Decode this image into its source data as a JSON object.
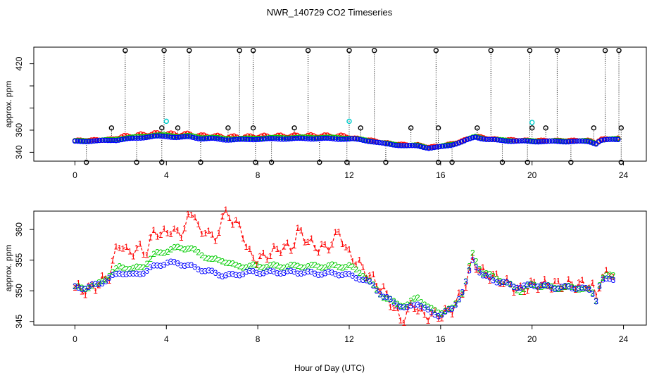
{
  "chart_data": {
    "type": "scatter",
    "title": "NWR_140729  CO2 Timeseries",
    "xlabel": "Hour of Day (UTC)",
    "colors": {
      "series1": "#ff0000",
      "series2": "#00cc00",
      "series3": "#0000ff",
      "flagged": "#000000",
      "reference": "#00cccc"
    },
    "panels": [
      {
        "id": "top",
        "ylabel": "approx. ppm",
        "xlim": [
          -1.8,
          25
        ],
        "ylim": [
          332,
          435
        ],
        "x_ticks": [
          "0",
          "4",
          "8",
          "12",
          "16",
          "20",
          "24"
        ],
        "y_ticks": [
          "340",
          "360",
          "380",
          "400",
          "420"
        ],
        "y_tick_labels_shown": [
          "340",
          "360",
          "420"
        ],
        "marker": "o",
        "baseline": [
          [
            0,
            350
          ],
          [
            1,
            350.5
          ],
          [
            1.5,
            351
          ],
          [
            2,
            352
          ],
          [
            2.5,
            353
          ],
          [
            3,
            354
          ],
          [
            3.5,
            355
          ],
          [
            4,
            355
          ],
          [
            4.5,
            354
          ],
          [
            5,
            354.5
          ],
          [
            5.5,
            353
          ],
          [
            6,
            353
          ],
          [
            6.5,
            352
          ],
          [
            7,
            352
          ],
          [
            7.5,
            352
          ],
          [
            8,
            352.5
          ],
          [
            9,
            352.8
          ],
          [
            10,
            353
          ],
          [
            11,
            353
          ],
          [
            12,
            352.5
          ],
          [
            12.5,
            351.5
          ],
          [
            13,
            350
          ],
          [
            13.5,
            348
          ],
          [
            14,
            347
          ],
          [
            14.5,
            346
          ],
          [
            15,
            346
          ],
          [
            15.5,
            344
          ],
          [
            16,
            345
          ],
          [
            16.5,
            347
          ],
          [
            17,
            350
          ],
          [
            17.5,
            354
          ],
          [
            18,
            352
          ],
          [
            18.5,
            351
          ],
          [
            19,
            350.5
          ],
          [
            20,
            350
          ],
          [
            21,
            350
          ],
          [
            22,
            350
          ],
          [
            22.5,
            350
          ],
          [
            22.8,
            348
          ],
          [
            23,
            351
          ],
          [
            23.8,
            352
          ]
        ],
        "spikes_up": [
          1.6,
          2.2,
          3.8,
          3.9,
          4.5,
          5.0,
          6.7,
          7.2,
          7.8,
          7.8,
          9.6,
          10.2,
          12.0,
          12.5,
          13.1,
          14.7,
          15.8,
          15.9,
          17.6,
          18.2,
          19.9,
          20.0,
          20.6,
          21.1,
          22.7,
          23.2,
          23.8,
          23.9
        ],
        "spike_tops": [
          362,
          432,
          362,
          432,
          362,
          432,
          362,
          432,
          432,
          362,
          362,
          432,
          432,
          362,
          432,
          362,
          432,
          362,
          362,
          432,
          432,
          362,
          362,
          432,
          362,
          432,
          432,
          362
        ],
        "spikes_down": [
          0.5,
          2.7,
          3.8,
          5.5,
          7.9,
          8.6,
          10.7,
          11.9,
          13.6,
          15.9,
          16.5,
          18.7,
          19.8,
          21.7,
          23.9
        ],
        "spike_bottom": 331,
        "reference_points": [
          [
            4.0,
            368
          ],
          [
            12.0,
            368
          ],
          [
            20.0,
            367
          ]
        ]
      },
      {
        "id": "bottom",
        "ylabel": "approx. ppm",
        "xlim": [
          -1.8,
          25
        ],
        "ylim": [
          344.4,
          363
        ],
        "x_ticks": [
          "0",
          "4",
          "8",
          "12",
          "16",
          "20",
          "24"
        ],
        "y_ticks": [
          "345",
          "350",
          "355",
          "360"
        ],
        "series_markers": [
          "1",
          "2",
          "3"
        ],
        "series": [
          {
            "name": "1",
            "color": "#ff0000",
            "values": [
              [
                0,
                350.5
              ],
              [
                0.5,
                350
              ],
              [
                1,
                351
              ],
              [
                1.5,
                352.5
              ],
              [
                1.8,
                356.5
              ],
              [
                2,
                358
              ],
              [
                2.3,
                356
              ],
              [
                2.8,
                357
              ],
              [
                3.1,
                356
              ],
              [
                3.5,
                360
              ],
              [
                3.8,
                359
              ],
              [
                4.2,
                360
              ],
              [
                4.6,
                359
              ],
              [
                5,
                362
              ],
              [
                5.3,
                363
              ],
              [
                5.5,
                358
              ],
              [
                5.8,
                361
              ],
              [
                6.1,
                357
              ],
              [
                6.4,
                362
              ],
              [
                6.7,
                362.5
              ],
              [
                7,
                361
              ],
              [
                7.3,
                360
              ],
              [
                7.6,
                356
              ],
              [
                8,
                355
              ],
              [
                8.5,
                356
              ],
              [
                9,
                357
              ],
              [
                9.5,
                357
              ],
              [
                9.8,
                360
              ],
              [
                10.2,
                358
              ],
              [
                10.6,
                357
              ],
              [
                11,
                357
              ],
              [
                11.3,
                358
              ],
              [
                11.6,
                360
              ],
              [
                11.8,
                357
              ],
              [
                12,
                356
              ],
              [
                12.5,
                354
              ],
              [
                13,
                352
              ],
              [
                13.5,
                350
              ],
              [
                14,
                347
              ],
              [
                14.3,
                345
              ],
              [
                14.8,
                348
              ],
              [
                15.2,
                346
              ],
              [
                15.6,
                346
              ],
              [
                16,
                346
              ],
              [
                16.5,
                347
              ],
              [
                17,
                350
              ],
              [
                17.4,
                355
              ],
              [
                17.8,
                353
              ],
              [
                18.5,
                352
              ],
              [
                19,
                351
              ],
              [
                19.5,
                350
              ],
              [
                20,
                351
              ],
              [
                21,
                351
              ],
              [
                22,
                351
              ],
              [
                22.6,
                351
              ],
              [
                22.8,
                349
              ],
              [
                23,
                352
              ],
              [
                23.5,
                353
              ]
            ]
          },
          {
            "name": "2",
            "color": "#00cc00",
            "values": [
              [
                0,
                350.5
              ],
              [
                0.5,
                350.5
              ],
              [
                1,
                351
              ],
              [
                1.5,
                352.5
              ],
              [
                2,
                354
              ],
              [
                2.5,
                353.5
              ],
              [
                3,
                354
              ],
              [
                3.5,
                356
              ],
              [
                4,
                356.5
              ],
              [
                4.5,
                357
              ],
              [
                5,
                357
              ],
              [
                5.5,
                356
              ],
              [
                6,
                355
              ],
              [
                6.5,
                355
              ],
              [
                7,
                354
              ],
              [
                7.5,
                354
              ],
              [
                8,
                354
              ],
              [
                8.5,
                354
              ],
              [
                9,
                354
              ],
              [
                9.5,
                354
              ],
              [
                10,
                354
              ],
              [
                10.5,
                354
              ],
              [
                11,
                354
              ],
              [
                11.5,
                354
              ],
              [
                12,
                354
              ],
              [
                12.5,
                353
              ],
              [
                13,
                351
              ],
              [
                13.5,
                349
              ],
              [
                14,
                348
              ],
              [
                14.5,
                347.5
              ],
              [
                15,
                349
              ],
              [
                15.5,
                347
              ],
              [
                16,
                346.5
              ],
              [
                16.5,
                347
              ],
              [
                17,
                350
              ],
              [
                17.4,
                356
              ],
              [
                17.8,
                353
              ],
              [
                18.5,
                352
              ],
              [
                19,
                351
              ],
              [
                19.5,
                350
              ],
              [
                20,
                351
              ],
              [
                21,
                350.5
              ],
              [
                22,
                350.5
              ],
              [
                22.6,
                350
              ],
              [
                22.8,
                348.5
              ],
              [
                23,
                352
              ],
              [
                23.5,
                352.5
              ]
            ]
          },
          {
            "name": "3",
            "color": "#0000ff",
            "values": [
              [
                0,
                350.5
              ],
              [
                0.5,
                350.5
              ],
              [
                1,
                351
              ],
              [
                1.5,
                352
              ],
              [
                2,
                353
              ],
              [
                2.5,
                352.5
              ],
              [
                3,
                353
              ],
              [
                3.5,
                354
              ],
              [
                4,
                354.5
              ],
              [
                4.5,
                354.5
              ],
              [
                5,
                354
              ],
              [
                5.5,
                353.5
              ],
              [
                6,
                353
              ],
              [
                6.5,
                352.5
              ],
              [
                7,
                352.5
              ],
              [
                7.5,
                353
              ],
              [
                8,
                353
              ],
              [
                8.5,
                353
              ],
              [
                9,
                353
              ],
              [
                9.5,
                353
              ],
              [
                10,
                353
              ],
              [
                10.5,
                352.8
              ],
              [
                11,
                352.8
              ],
              [
                11.5,
                352.8
              ],
              [
                12,
                352.5
              ],
              [
                12.5,
                352
              ],
              [
                13,
                351
              ],
              [
                13.5,
                349
              ],
              [
                14,
                348
              ],
              [
                14.5,
                347
              ],
              [
                15,
                348
              ],
              [
                15.5,
                346.5
              ],
              [
                16,
                346
              ],
              [
                16.5,
                347
              ],
              [
                17,
                350
              ],
              [
                17.4,
                355
              ],
              [
                17.8,
                352.5
              ],
              [
                18.5,
                351.5
              ],
              [
                19,
                351
              ],
              [
                19.5,
                350.5
              ],
              [
                20,
                351
              ],
              [
                21,
                350.5
              ],
              [
                22,
                350.5
              ],
              [
                22.6,
                350
              ],
              [
                22.8,
                348.5
              ],
              [
                23,
                351.5
              ],
              [
                23.5,
                352
              ]
            ]
          }
        ]
      }
    ]
  }
}
